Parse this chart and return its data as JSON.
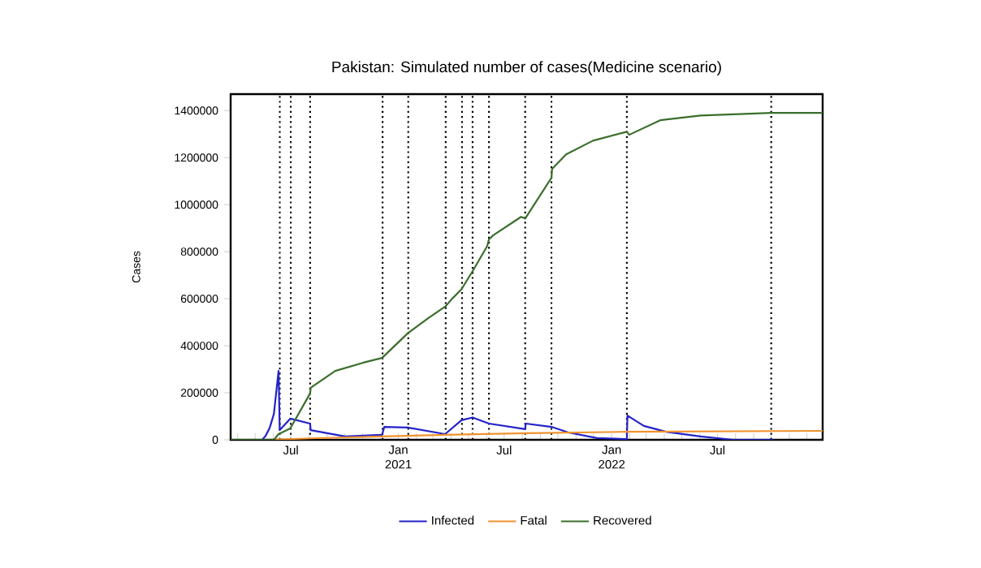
{
  "chart_data": {
    "type": "line",
    "title": "Pakistan: Simulated number of cases(Medicine scenario)",
    "ylabel": "Cases",
    "xlim": [
      "2020-03-20",
      "2022-12-28"
    ],
    "ylim": [
      0,
      1470000
    ],
    "yticks": [
      0,
      200000,
      400000,
      600000,
      800000,
      1000000,
      1200000,
      1400000
    ],
    "xticks": [
      {
        "value": "2020-04-01",
        "label": null
      },
      {
        "value": "2020-05-01",
        "label": null
      },
      {
        "value": "2020-06-01",
        "label": null
      },
      {
        "value": "2020-07-01",
        "label": "Jul"
      },
      {
        "value": "2020-08-01",
        "label": null
      },
      {
        "value": "2020-09-01",
        "label": null
      },
      {
        "value": "2020-10-01",
        "label": null
      },
      {
        "value": "2020-11-01",
        "label": null
      },
      {
        "value": "2020-12-01",
        "label": null
      },
      {
        "value": "2021-01-01",
        "label": "Jan 2021"
      },
      {
        "value": "2021-02-01",
        "label": null
      },
      {
        "value": "2021-03-01",
        "label": null
      },
      {
        "value": "2021-04-01",
        "label": null
      },
      {
        "value": "2021-05-01",
        "label": null
      },
      {
        "value": "2021-06-01",
        "label": null
      },
      {
        "value": "2021-07-01",
        "label": "Jul"
      },
      {
        "value": "2021-08-01",
        "label": null
      },
      {
        "value": "2021-09-01",
        "label": null
      },
      {
        "value": "2021-10-01",
        "label": null
      },
      {
        "value": "2021-11-01",
        "label": null
      },
      {
        "value": "2021-12-01",
        "label": null
      },
      {
        "value": "2022-01-01",
        "label": "Jan 2022"
      },
      {
        "value": "2022-02-01",
        "label": null
      },
      {
        "value": "2022-03-01",
        "label": null
      },
      {
        "value": "2022-04-01",
        "label": null
      },
      {
        "value": "2022-05-01",
        "label": null
      },
      {
        "value": "2022-06-01",
        "label": null
      },
      {
        "value": "2022-07-01",
        "label": "Jul"
      },
      {
        "value": "2022-08-01",
        "label": null
      },
      {
        "value": "2022-09-01",
        "label": null
      },
      {
        "value": "2022-10-01",
        "label": null
      },
      {
        "value": "2022-11-01",
        "label": null
      },
      {
        "value": "2022-12-01",
        "label": null
      }
    ],
    "legend": "bottom",
    "grid": false,
    "series": [
      {
        "name": "Infected",
        "color": "#2323c8",
        "x": [
          "2020-03-20",
          "2020-05-13",
          "2020-05-19",
          "2020-05-26",
          "2020-06-02",
          "2020-06-10",
          "2020-06-12",
          "2020-06-30",
          "2020-08-03",
          "2020-08-04",
          "2020-10-02",
          "2020-12-04",
          "2020-12-08",
          "2021-01-17",
          "2021-03-22",
          "2021-04-19",
          "2021-05-08",
          "2021-06-05",
          "2021-08-06",
          "2021-08-07",
          "2021-09-20",
          "2021-10-19",
          "2021-12-07",
          "2022-01-27",
          "2022-01-28",
          "2022-02-25",
          "2022-04-04",
          "2022-06-02",
          "2022-07-28",
          "2022-10-05"
        ],
        "values": [
          0,
          0,
          17000,
          52000,
          110000,
          293000,
          41000,
          90000,
          69000,
          41000,
          14000,
          21000,
          55000,
          52000,
          24000,
          83000,
          95000,
          69000,
          45000,
          69000,
          55000,
          31000,
          7000,
          3000,
          103000,
          59000,
          34000,
          14000,
          0,
          0
        ]
      },
      {
        "name": "Fatal",
        "color": "#f0922e",
        "x": [
          "2020-03-20",
          "2020-05-19",
          "2020-08-03",
          "2020-12-04",
          "2021-03-22",
          "2021-08-06",
          "2022-01-27",
          "2022-12-28"
        ],
        "values": [
          0,
          0,
          6000,
          14000,
          21000,
          28000,
          34000,
          38000
        ]
      },
      {
        "name": "Recovered",
        "color": "#3b6e2c",
        "x": [
          "2020-03-20",
          "2020-06-02",
          "2020-06-10",
          "2020-06-30",
          "2020-08-03",
          "2020-08-04",
          "2020-09-15",
          "2020-11-02",
          "2020-12-04",
          "2021-01-18",
          "2021-02-21",
          "2021-03-22",
          "2021-04-03",
          "2021-04-19",
          "2021-05-08",
          "2021-06-02",
          "2021-06-05",
          "2021-06-12",
          "2021-07-30",
          "2021-08-06",
          "2021-09-20",
          "2021-09-21",
          "2021-10-15",
          "2021-11-30",
          "2022-01-27",
          "2022-01-31",
          "2022-03-25",
          "2022-06-02",
          "2022-10-01",
          "2022-12-28"
        ],
        "values": [
          0,
          0,
          24000,
          48000,
          197000,
          221000,
          293000,
          328000,
          348000,
          455000,
          517000,
          566000,
          600000,
          640000,
          717000,
          824000,
          852000,
          869000,
          948000,
          941000,
          1114000,
          1152000,
          1214000,
          1272000,
          1310000,
          1297000,
          1359000,
          1379000,
          1390000,
          1390000
        ]
      }
    ],
    "ref_lines": [
      {
        "axis": "x",
        "value": "2020-06-12",
        "color": "#000000",
        "line_style": "dotted"
      },
      {
        "axis": "x",
        "value": "2020-07-01",
        "color": "#000000",
        "line_style": "dotted"
      },
      {
        "axis": "x",
        "value": "2020-08-03",
        "color": "#000000",
        "line_style": "dotted"
      },
      {
        "axis": "x",
        "value": "2020-12-05",
        "color": "#000000",
        "line_style": "dotted"
      },
      {
        "axis": "x",
        "value": "2021-01-18",
        "color": "#000000",
        "line_style": "dotted"
      },
      {
        "axis": "x",
        "value": "2021-03-23",
        "color": "#000000",
        "line_style": "dotted"
      },
      {
        "axis": "x",
        "value": "2021-04-20",
        "color": "#000000",
        "line_style": "dotted"
      },
      {
        "axis": "x",
        "value": "2021-05-08",
        "color": "#000000",
        "line_style": "dotted"
      },
      {
        "axis": "x",
        "value": "2021-06-05",
        "color": "#000000",
        "line_style": "dotted"
      },
      {
        "axis": "x",
        "value": "2021-08-06",
        "color": "#000000",
        "line_style": "dotted"
      },
      {
        "axis": "x",
        "value": "2021-09-20",
        "color": "#000000",
        "line_style": "dotted"
      },
      {
        "axis": "x",
        "value": "2022-01-27",
        "color": "#000000",
        "line_style": "dotted"
      },
      {
        "axis": "x",
        "value": "2022-10-01",
        "color": "#000000",
        "line_style": "dotted"
      }
    ]
  }
}
